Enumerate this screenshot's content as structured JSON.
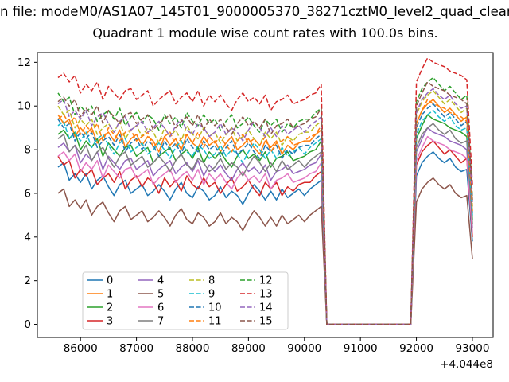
{
  "chart_data": {
    "type": "line",
    "figure_title": "n file: modeM0/AS1A07_145T01_9000005370_38271cztM0_level2_quad_clean",
    "title": "Quadrant 1 module wise count rates with 100.0s bins.",
    "xlabel": "",
    "ylabel": "",
    "x_tick_offset": "+4.044e8",
    "x_ticks": [
      86000,
      87000,
      88000,
      89000,
      90000,
      91000,
      92000,
      93000
    ],
    "y_ticks": [
      0,
      2,
      4,
      6,
      8,
      10,
      12
    ],
    "xlim": [
      85230,
      93370
    ],
    "ylim": [
      -0.6,
      12.45
    ],
    "grid": false,
    "legend_position": "lower left",
    "legend_columns": 4,
    "x": [
      85600,
      85700,
      85800,
      85900,
      86000,
      86100,
      86200,
      86300,
      86400,
      86500,
      86600,
      86700,
      86800,
      86900,
      87000,
      87100,
      87200,
      87300,
      87400,
      87500,
      87600,
      87700,
      87800,
      87900,
      88000,
      88100,
      88200,
      88300,
      88400,
      88500,
      88600,
      88700,
      88800,
      88900,
      89000,
      89100,
      89200,
      89300,
      89400,
      89500,
      89600,
      89700,
      89800,
      89900,
      90000,
      90100,
      90200,
      90300,
      90400,
      91900,
      92000,
      92100,
      92200,
      92300,
      92400,
      92500,
      92600,
      92700,
      92800,
      92900,
      93000
    ],
    "series": [
      {
        "name": "0",
        "color": "#1f77b4",
        "style": "solid",
        "values": [
          7.2,
          7.4,
          6.6,
          6.9,
          6.5,
          6.9,
          6.2,
          6.6,
          6.8,
          6.3,
          5.9,
          6.4,
          6.6,
          6.0,
          6.2,
          6.4,
          5.9,
          6.1,
          6.4,
          6.1,
          5.7,
          6.2,
          6.5,
          6.0,
          5.8,
          6.3,
          6.1,
          5.7,
          5.9,
          6.3,
          5.8,
          6.1,
          5.9,
          5.5,
          6.0,
          6.4,
          6.1,
          5.7,
          6.1,
          5.7,
          6.2,
          5.8,
          6.0,
          6.2,
          5.9,
          6.2,
          6.4,
          6.6,
          0,
          0,
          6.8,
          7.4,
          7.7,
          7.9,
          7.6,
          7.4,
          7.6,
          7.2,
          7.0,
          7.1,
          3.8
        ]
      },
      {
        "name": "1",
        "color": "#ff7f0e",
        "style": "solid",
        "values": [
          9.6,
          9.2,
          9.4,
          8.6,
          9.0,
          8.7,
          9.0,
          8.3,
          8.6,
          8.8,
          8.4,
          8.9,
          8.1,
          8.5,
          8.7,
          8.2,
          8.6,
          8.4,
          7.9,
          8.6,
          8.2,
          8.5,
          8.0,
          8.7,
          8.3,
          8.1,
          8.6,
          8.2,
          8.4,
          7.9,
          8.3,
          8.6,
          8.0,
          8.2,
          8.5,
          8.1,
          7.8,
          8.4,
          8.1,
          8.4,
          7.8,
          8.2,
          8.0,
          8.3,
          8.4,
          8.4,
          8.7,
          8.9,
          0,
          0,
          9.2,
          9.8,
          10.1,
          10.3,
          10.0,
          9.7,
          9.9,
          9.6,
          9.3,
          9.5,
          5.1
        ]
      },
      {
        "name": "2",
        "color": "#2ca02c",
        "style": "solid",
        "values": [
          8.7,
          8.9,
          8.5,
          8.8,
          8.0,
          8.4,
          8.1,
          8.5,
          7.7,
          8.3,
          8.0,
          7.7,
          8.1,
          8.2,
          7.7,
          7.9,
          8.1,
          7.4,
          7.7,
          7.9,
          8.1,
          7.5,
          7.8,
          8.0,
          7.6,
          8.1,
          7.4,
          7.9,
          7.6,
          7.9,
          7.5,
          7.2,
          7.7,
          8.0,
          7.6,
          7.8,
          7.5,
          7.9,
          7.2,
          7.6,
          7.7,
          7.9,
          7.5,
          7.6,
          7.7,
          7.9,
          8.0,
          8.4,
          0,
          0,
          8.5,
          9.1,
          9.6,
          9.4,
          9.3,
          9.2,
          9.0,
          8.9,
          8.8,
          8.6,
          4.8
        ]
      },
      {
        "name": "3",
        "color": "#d62728",
        "style": "solid",
        "values": [
          7.7,
          7.3,
          7.5,
          6.7,
          7.1,
          6.8,
          7.1,
          6.4,
          6.7,
          6.9,
          6.5,
          7.0,
          6.2,
          6.6,
          6.8,
          6.3,
          6.7,
          6.5,
          6.0,
          6.7,
          6.3,
          6.6,
          6.1,
          6.8,
          6.4,
          6.2,
          6.7,
          6.3,
          6.5,
          6.0,
          6.4,
          6.7,
          6.1,
          6.3,
          6.6,
          6.2,
          5.9,
          6.5,
          6.2,
          6.5,
          5.9,
          6.3,
          6.1,
          6.4,
          6.5,
          6.5,
          6.8,
          7.0,
          0,
          0,
          7.3,
          7.9,
          8.2,
          8.4,
          8.1,
          7.8,
          8.0,
          7.7,
          7.4,
          7.6,
          4.0
        ]
      },
      {
        "name": "4",
        "color": "#9467bd",
        "style": "solid",
        "values": [
          8.1,
          8.3,
          7.9,
          8.2,
          7.4,
          7.8,
          7.5,
          7.9,
          7.1,
          7.7,
          7.4,
          7.1,
          7.5,
          7.6,
          7.1,
          7.3,
          7.5,
          6.8,
          7.1,
          7.3,
          7.5,
          6.9,
          7.2,
          7.4,
          7.0,
          7.5,
          6.8,
          7.3,
          7.0,
          7.3,
          6.9,
          6.6,
          7.1,
          7.4,
          7.0,
          7.2,
          6.9,
          7.3,
          6.6,
          7.0,
          7.1,
          7.3,
          6.9,
          7.0,
          7.1,
          7.3,
          7.4,
          7.8,
          0,
          0,
          7.9,
          8.5,
          9.0,
          8.8,
          8.7,
          8.6,
          8.4,
          8.3,
          8.2,
          8.0,
          4.4
        ]
      },
      {
        "name": "5",
        "color": "#8c564b",
        "style": "solid",
        "values": [
          6.0,
          6.2,
          5.4,
          5.7,
          5.3,
          5.7,
          5.0,
          5.4,
          5.6,
          5.1,
          4.7,
          5.2,
          5.4,
          4.8,
          5.0,
          5.2,
          4.7,
          4.9,
          5.2,
          4.9,
          4.5,
          5.0,
          5.3,
          4.8,
          4.6,
          5.1,
          4.9,
          4.5,
          4.7,
          5.1,
          4.6,
          4.9,
          4.7,
          4.3,
          4.8,
          5.2,
          4.9,
          4.5,
          4.9,
          4.5,
          5.0,
          4.6,
          4.8,
          5.0,
          4.7,
          5.0,
          5.2,
          5.4,
          0,
          0,
          5.6,
          6.2,
          6.5,
          6.7,
          6.4,
          6.2,
          6.4,
          6.0,
          5.8,
          5.9,
          3.0
        ]
      },
      {
        "name": "6",
        "color": "#e377c2",
        "style": "solid",
        "values": [
          7.7,
          7.9,
          7.5,
          7.8,
          7.0,
          7.4,
          7.1,
          7.5,
          6.7,
          7.3,
          7.0,
          6.7,
          7.1,
          7.2,
          6.7,
          6.9,
          7.1,
          6.4,
          6.7,
          6.9,
          7.1,
          6.5,
          6.8,
          7.0,
          6.6,
          7.1,
          6.4,
          6.9,
          6.6,
          6.9,
          6.5,
          6.2,
          6.7,
          7.0,
          6.6,
          6.8,
          6.5,
          6.9,
          6.2,
          6.6,
          6.7,
          6.9,
          6.5,
          6.6,
          6.7,
          6.9,
          7.0,
          7.4,
          0,
          0,
          7.5,
          8.1,
          8.6,
          8.4,
          8.3,
          8.2,
          8.0,
          7.9,
          7.8,
          7.6,
          4.2
        ]
      },
      {
        "name": "7",
        "color": "#7f7f7f",
        "style": "solid",
        "values": [
          8.5,
          8.7,
          7.9,
          8.2,
          7.8,
          8.2,
          7.5,
          7.9,
          8.1,
          7.6,
          7.2,
          7.7,
          7.9,
          7.3,
          7.5,
          7.7,
          7.2,
          7.4,
          7.7,
          7.4,
          7.0,
          7.5,
          7.8,
          7.3,
          7.1,
          7.6,
          7.4,
          7.0,
          7.2,
          7.6,
          7.1,
          7.4,
          7.2,
          6.8,
          7.3,
          7.7,
          7.4,
          7.0,
          7.4,
          7.0,
          7.5,
          7.1,
          7.3,
          7.5,
          7.2,
          7.5,
          7.7,
          7.9,
          0,
          0,
          8.1,
          8.7,
          9.0,
          9.2,
          8.9,
          8.7,
          8.9,
          8.5,
          8.3,
          8.4,
          4.6
        ]
      },
      {
        "name": "8",
        "color": "#bcbd22",
        "style": "dashed",
        "values": [
          10.0,
          9.6,
          9.8,
          9.0,
          9.4,
          9.1,
          9.4,
          8.7,
          9.0,
          9.2,
          8.8,
          9.3,
          8.5,
          8.9,
          9.1,
          8.6,
          9.0,
          8.8,
          8.3,
          9.0,
          8.6,
          8.9,
          8.4,
          9.1,
          8.7,
          8.5,
          9.0,
          8.6,
          8.8,
          8.3,
          8.7,
          9.0,
          8.4,
          8.6,
          8.9,
          8.5,
          8.2,
          8.8,
          8.5,
          8.8,
          8.2,
          8.6,
          8.4,
          8.7,
          8.8,
          8.8,
          9.1,
          9.3,
          0,
          0,
          9.6,
          10.2,
          10.5,
          10.7,
          10.4,
          10.1,
          10.3,
          10.0,
          9.7,
          9.9,
          5.4
        ]
      },
      {
        "name": "9",
        "color": "#17becf",
        "style": "dashed",
        "values": [
          9.1,
          9.3,
          8.5,
          8.8,
          8.4,
          8.8,
          8.1,
          8.5,
          8.7,
          8.2,
          7.8,
          8.3,
          8.5,
          7.9,
          8.1,
          8.3,
          7.8,
          8.0,
          8.3,
          8.0,
          7.6,
          8.1,
          8.4,
          7.9,
          7.7,
          8.2,
          8.0,
          7.6,
          7.8,
          8.2,
          7.7,
          8.0,
          7.8,
          7.4,
          7.9,
          8.3,
          8.0,
          7.6,
          8.0,
          7.6,
          8.1,
          7.7,
          7.9,
          8.1,
          7.8,
          8.1,
          8.3,
          8.5,
          0,
          0,
          8.7,
          9.3,
          9.6,
          9.8,
          9.5,
          9.3,
          9.5,
          9.1,
          8.9,
          9.0,
          5.0
        ]
      },
      {
        "name": "10",
        "color": "#1f77b4",
        "style": "dashed",
        "values": [
          9.4,
          9.0,
          9.2,
          8.4,
          8.8,
          8.5,
          8.8,
          8.1,
          8.4,
          8.6,
          8.2,
          8.7,
          7.9,
          8.3,
          8.5,
          8.0,
          8.4,
          8.2,
          7.7,
          8.4,
          8.0,
          8.3,
          7.8,
          8.5,
          8.1,
          7.9,
          8.4,
          8.0,
          8.2,
          7.7,
          8.1,
          8.4,
          7.8,
          8.0,
          8.3,
          7.9,
          7.6,
          8.2,
          7.9,
          8.2,
          7.6,
          8.0,
          7.8,
          8.1,
          8.2,
          8.2,
          8.5,
          8.7,
          0,
          0,
          9.0,
          9.6,
          9.9,
          10.1,
          9.8,
          9.5,
          9.7,
          9.4,
          9.1,
          9.3,
          5.0
        ]
      },
      {
        "name": "11",
        "color": "#ff7f0e",
        "style": "dashed",
        "values": [
          9.4,
          9.6,
          9.2,
          9.5,
          8.7,
          9.1,
          8.8,
          9.2,
          8.4,
          9.0,
          8.7,
          8.4,
          8.8,
          8.9,
          8.4,
          8.6,
          8.8,
          8.1,
          8.4,
          8.6,
          8.8,
          8.2,
          8.5,
          8.7,
          8.3,
          8.8,
          8.1,
          8.6,
          8.3,
          8.6,
          8.2,
          7.9,
          8.4,
          8.7,
          8.3,
          8.5,
          8.2,
          8.6,
          7.9,
          8.3,
          8.4,
          8.6,
          8.2,
          8.3,
          8.4,
          8.6,
          8.7,
          9.1,
          0,
          0,
          9.2,
          9.8,
          10.3,
          10.1,
          10.0,
          9.9,
          9.7,
          9.6,
          9.5,
          9.3,
          5.2
        ]
      },
      {
        "name": "12",
        "color": "#2ca02c",
        "style": "dashed",
        "values": [
          10.6,
          10.2,
          10.4,
          9.6,
          10.0,
          9.7,
          10.0,
          9.3,
          9.6,
          9.8,
          9.4,
          9.9,
          9.1,
          9.5,
          9.7,
          9.2,
          9.6,
          9.4,
          8.9,
          9.6,
          9.2,
          9.5,
          9.0,
          9.7,
          9.3,
          9.1,
          9.6,
          9.2,
          9.4,
          8.9,
          9.3,
          9.6,
          9.0,
          9.2,
          9.5,
          9.1,
          8.8,
          9.4,
          9.1,
          9.4,
          8.8,
          9.2,
          9.0,
          9.3,
          9.4,
          9.4,
          9.7,
          9.9,
          0,
          0,
          10.2,
          10.8,
          11.1,
          11.3,
          11.0,
          10.7,
          10.9,
          10.6,
          10.3,
          10.5,
          5.8
        ]
      },
      {
        "name": "13",
        "color": "#d62728",
        "style": "dashed",
        "values": [
          11.3,
          11.5,
          11.1,
          11.4,
          10.6,
          11.0,
          10.7,
          11.1,
          10.3,
          10.9,
          10.6,
          10.3,
          10.7,
          10.8,
          10.3,
          10.5,
          10.7,
          10.0,
          10.3,
          10.5,
          10.7,
          10.1,
          10.4,
          10.6,
          10.2,
          10.7,
          10.0,
          10.5,
          10.2,
          10.5,
          10.1,
          9.8,
          10.3,
          10.6,
          10.2,
          10.4,
          10.1,
          10.5,
          9.8,
          10.2,
          10.3,
          10.5,
          10.1,
          10.2,
          10.3,
          10.5,
          10.6,
          11.0,
          0,
          0,
          11.1,
          11.7,
          12.2,
          12.0,
          11.9,
          11.8,
          11.6,
          11.5,
          11.4,
          11.2,
          6.4
        ]
      },
      {
        "name": "14",
        "color": "#9467bd",
        "style": "dashed",
        "values": [
          10.1,
          10.3,
          9.5,
          9.8,
          9.4,
          9.8,
          9.1,
          9.5,
          9.7,
          9.2,
          8.8,
          9.3,
          9.5,
          8.9,
          9.1,
          9.3,
          8.8,
          9.0,
          9.3,
          9.0,
          8.6,
          9.1,
          9.4,
          8.9,
          8.7,
          9.2,
          9.0,
          8.6,
          8.8,
          9.2,
          8.7,
          9.0,
          8.8,
          8.4,
          8.9,
          9.3,
          9.0,
          8.6,
          9.0,
          8.6,
          9.1,
          8.7,
          8.9,
          9.1,
          8.8,
          9.1,
          9.3,
          9.5,
          0,
          0,
          9.7,
          10.3,
          10.6,
          10.8,
          10.5,
          10.3,
          10.5,
          10.1,
          9.9,
          10.0,
          5.6
        ]
      },
      {
        "name": "15",
        "color": "#8c564b",
        "style": "dashed",
        "values": [
          10.2,
          10.4,
          10.0,
          10.3,
          9.5,
          9.9,
          9.6,
          10.0,
          9.2,
          9.8,
          9.5,
          9.2,
          9.6,
          9.7,
          9.2,
          9.4,
          9.6,
          8.9,
          9.2,
          9.4,
          9.6,
          9.0,
          9.3,
          9.5,
          9.1,
          9.6,
          8.9,
          9.4,
          9.1,
          9.4,
          9.0,
          8.7,
          9.2,
          9.5,
          9.1,
          9.3,
          9.0,
          9.4,
          8.7,
          9.1,
          9.2,
          9.4,
          9.0,
          9.1,
          9.2,
          9.4,
          9.5,
          9.9,
          0,
          0,
          10.0,
          10.6,
          11.1,
          10.9,
          10.8,
          10.7,
          10.5,
          10.4,
          10.3,
          10.1,
          5.7
        ]
      }
    ]
  }
}
